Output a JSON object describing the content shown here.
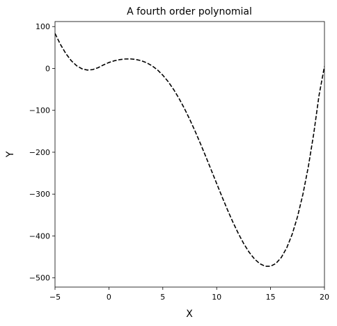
{
  "chart_data": {
    "type": "line",
    "title": "A fourth order polynomial",
    "xlabel": "X",
    "ylabel": "Y",
    "xlim": [
      -5,
      20
    ],
    "ylim": [
      -522,
      112
    ],
    "xticks": [
      -5,
      0,
      5,
      10,
      15,
      20
    ],
    "yticks": [
      100,
      0,
      -100,
      -200,
      -300,
      -400,
      -500
    ],
    "grid": false,
    "legend": "none",
    "series": [
      {
        "line_style": "dashed",
        "color": "#000000",
        "x": [
          -5,
          -4.5,
          -4,
          -3.5,
          -3,
          -2.5,
          -2,
          -1.5,
          -1,
          -0.5,
          0,
          0.5,
          1,
          1.5,
          2,
          2.5,
          3,
          3.5,
          4,
          4.5,
          5,
          5.5,
          6,
          6.5,
          7,
          7.5,
          8,
          8.5,
          9,
          9.5,
          10,
          10.5,
          11,
          11.5,
          12,
          12.5,
          13,
          13.5,
          14,
          14.5,
          15,
          15.5,
          16,
          16.5,
          17,
          17.5,
          18,
          18.5,
          19,
          19.5,
          20
        ],
        "y": [
          83.6,
          57.5,
          35.8,
          18.8,
          6.6,
          -0.8,
          -3.8,
          -2.7,
          1.9,
          8.5,
          14.2,
          18.3,
          21.1,
          22.6,
          22.8,
          21.5,
          18.5,
          13.6,
          6.5,
          -3.3,
          -16.0,
          -31.5,
          -50.0,
          -71.3,
          -95.3,
          -121.6,
          -149.9,
          -179.9,
          -211.0,
          -242.9,
          -274.9,
          -306.6,
          -337.4,
          -366.6,
          -393.6,
          -417.9,
          -438.4,
          -454.7,
          -466.2,
          -472.3,
          -472.3,
          -465.5,
          -451.1,
          -428.3,
          -396.2,
          -353.9,
          -300.5,
          -235.0,
          -156.4,
          -63.7,
          5.0
        ]
      }
    ]
  }
}
